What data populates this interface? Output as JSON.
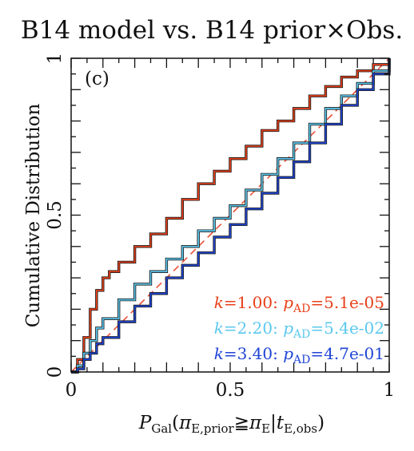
{
  "chart_data": {
    "type": "line",
    "title": "B14 model vs. B14 prior×Obs.",
    "panel_label": "(c)",
    "xlabel": "P_Gal(π_E,prior ≧ π_E | t_E,obs)",
    "ylabel": "Cumulative Distribution",
    "xlim": [
      0,
      1
    ],
    "ylim": [
      0,
      1
    ],
    "x_ticks": [
      {
        "value": 0,
        "label": "0"
      },
      {
        "value": 0.5,
        "label": "0.5"
      },
      {
        "value": 1,
        "label": "1"
      }
    ],
    "y_ticks": [
      {
        "value": 0,
        "label": "0"
      },
      {
        "value": 0.5,
        "label": "0.5"
      },
      {
        "value": 1,
        "label": "1"
      }
    ],
    "grid": false,
    "legend_position": "bottom-right",
    "reference_line": {
      "x": [
        0,
        1
      ],
      "y": [
        0,
        1
      ],
      "color": "#e8513a",
      "style": "dashed"
    },
    "series": [
      {
        "name": "k=1.00: p_AD=5.1e-05",
        "k": "1.00",
        "p_ad": "5.1e-05",
        "color": "#e8401a",
        "x": [
          0,
          0.02,
          0.04,
          0.06,
          0.08,
          0.1,
          0.12,
          0.15,
          0.2,
          0.25,
          0.3,
          0.35,
          0.4,
          0.45,
          0.5,
          0.55,
          0.6,
          0.65,
          0.7,
          0.75,
          0.8,
          0.85,
          0.9,
          0.95,
          1.0
        ],
        "y": [
          0,
          0.04,
          0.11,
          0.2,
          0.26,
          0.3,
          0.32,
          0.35,
          0.4,
          0.44,
          0.49,
          0.55,
          0.6,
          0.64,
          0.68,
          0.72,
          0.77,
          0.8,
          0.84,
          0.88,
          0.91,
          0.94,
          0.96,
          0.98,
          1.0
        ]
      },
      {
        "name": "k=2.20: p_AD=5.4e-02",
        "k": "2.20",
        "p_ad": "5.4e-02",
        "color": "#5bc8ee",
        "x": [
          0,
          0.02,
          0.04,
          0.06,
          0.08,
          0.1,
          0.15,
          0.2,
          0.25,
          0.3,
          0.35,
          0.4,
          0.45,
          0.5,
          0.55,
          0.6,
          0.65,
          0.7,
          0.75,
          0.8,
          0.85,
          0.9,
          0.95,
          1.0
        ],
        "y": [
          0,
          0.02,
          0.06,
          0.1,
          0.14,
          0.17,
          0.23,
          0.28,
          0.32,
          0.36,
          0.4,
          0.45,
          0.49,
          0.53,
          0.58,
          0.63,
          0.68,
          0.73,
          0.79,
          0.84,
          0.88,
          0.92,
          0.96,
          1.0
        ]
      },
      {
        "name": "k=3.40: p_AD=4.7e-01",
        "k": "3.40",
        "p_ad": "4.7e-01",
        "color": "#1f45d6",
        "x": [
          0,
          0.02,
          0.04,
          0.06,
          0.08,
          0.1,
          0.15,
          0.2,
          0.25,
          0.3,
          0.35,
          0.4,
          0.45,
          0.5,
          0.55,
          0.6,
          0.65,
          0.7,
          0.75,
          0.8,
          0.85,
          0.9,
          0.95,
          1.0
        ],
        "y": [
          0,
          0.01,
          0.04,
          0.06,
          0.09,
          0.11,
          0.16,
          0.21,
          0.25,
          0.3,
          0.34,
          0.38,
          0.43,
          0.47,
          0.52,
          0.57,
          0.62,
          0.67,
          0.73,
          0.79,
          0.85,
          0.9,
          0.95,
          1.0
        ]
      }
    ]
  }
}
